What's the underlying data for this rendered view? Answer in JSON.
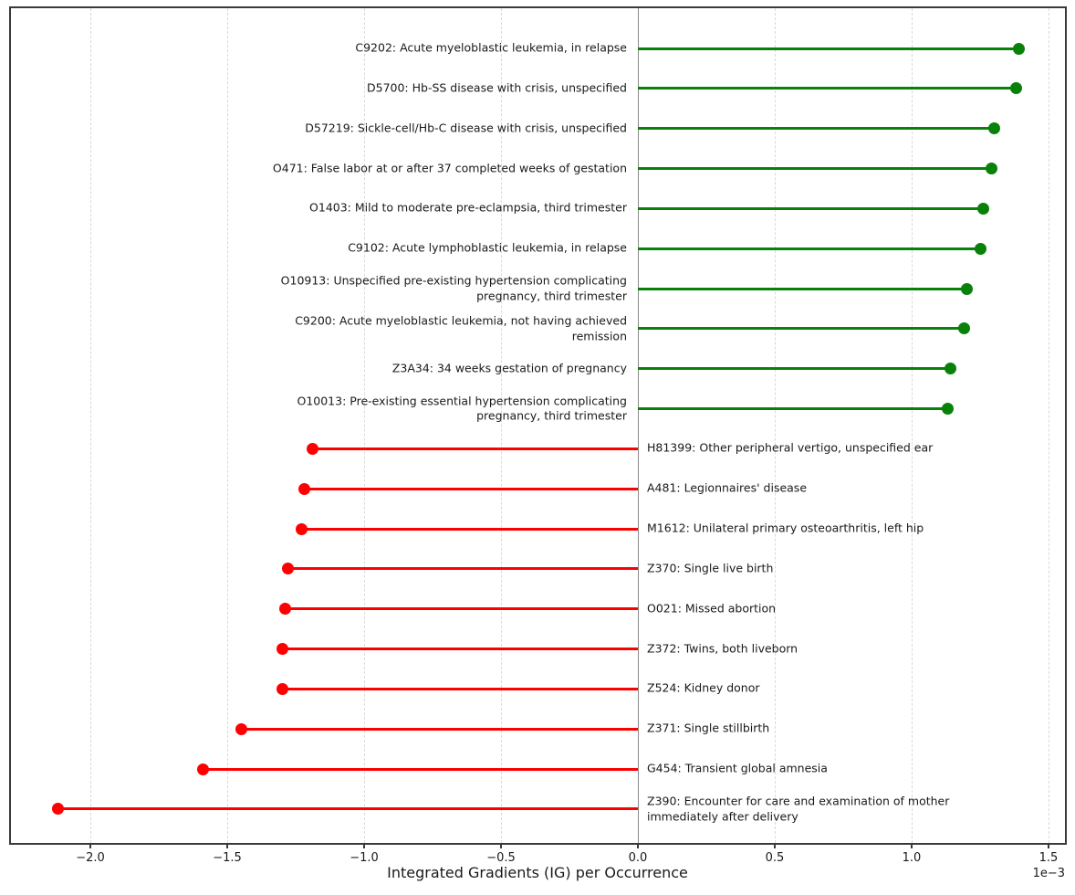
{
  "chart_data": {
    "type": "bar",
    "variant": "horizontal-lollipop",
    "title": "",
    "xlabel": "Integrated Gradients (IG) per Occurrence",
    "x_offset_label": "1e−3",
    "value_units": "1e-3",
    "xlim": [
      -2.29,
      1.57
    ],
    "x_ticks": [
      {
        "v": -2.0,
        "label": "−2.0"
      },
      {
        "v": -1.5,
        "label": "−1.5"
      },
      {
        "v": -1.0,
        "label": "−1.0"
      },
      {
        "v": -0.5,
        "label": "−0.5"
      },
      {
        "v": 0.0,
        "label": "0.0"
      },
      {
        "v": 0.5,
        "label": "0.5"
      },
      {
        "v": 1.0,
        "label": "1.0"
      },
      {
        "v": 1.5,
        "label": "1.5"
      }
    ],
    "grid": "vertical-dashed",
    "zero_line": true,
    "legend": "none",
    "positive_color": "#088108",
    "negative_color": "#ff0000",
    "items": [
      {
        "label": "C9202: Acute myeloblastic leukemia, in relapse",
        "value": 1.39
      },
      {
        "label": "D5700: Hb-SS disease with crisis, unspecified",
        "value": 1.38
      },
      {
        "label": "D57219: Sickle-cell/Hb-C disease with crisis, unspecified",
        "value": 1.3
      },
      {
        "label": "O471: False labor at or after 37 completed weeks of gestation",
        "value": 1.29
      },
      {
        "label": "O1403: Mild to moderate pre-eclampsia, third trimester",
        "value": 1.26
      },
      {
        "label": "C9102: Acute lymphoblastic leukemia, in relapse",
        "value": 1.25
      },
      {
        "label": "O10913: Unspecified pre-existing hypertension complicating pregnancy, third trimester",
        "value": 1.2
      },
      {
        "label": "C9200: Acute myeloblastic leukemia, not having achieved remission",
        "value": 1.19
      },
      {
        "label": "Z3A34: 34 weeks gestation of pregnancy",
        "value": 1.14
      },
      {
        "label": "O10013: Pre-existing essential hypertension complicating pregnancy, third trimester",
        "value": 1.13
      },
      {
        "label": "H81399: Other peripheral vertigo, unspecified ear",
        "value": -1.19
      },
      {
        "label": "A481: Legionnaires' disease",
        "value": -1.22
      },
      {
        "label": "M1612: Unilateral primary osteoarthritis, left hip",
        "value": -1.23
      },
      {
        "label": "Z370: Single live birth",
        "value": -1.28
      },
      {
        "label": "O021: Missed abortion",
        "value": -1.29
      },
      {
        "label": "Z372: Twins, both liveborn",
        "value": -1.3
      },
      {
        "label": "Z524: Kidney donor",
        "value": -1.3
      },
      {
        "label": "Z371: Single stillbirth",
        "value": -1.45
      },
      {
        "label": "G454: Transient global amnesia",
        "value": -1.59
      },
      {
        "label": "Z390: Encounter for care and examination of mother immediately after delivery",
        "value": -2.12
      }
    ]
  }
}
